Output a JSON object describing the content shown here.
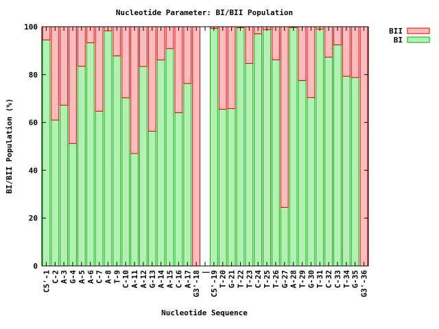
{
  "chart_data": {
    "type": "bar",
    "stacked": true,
    "title": "Nucleotide Parameter: BI/BII Population",
    "xlabel": "Nucleotide Sequence",
    "ylabel": "BI/BII Population (%)",
    "ylim": [
      0,
      100
    ],
    "yticks": [
      0,
      20,
      40,
      60,
      80,
      100
    ],
    "legend_position": "top-right outside",
    "grid": false,
    "categories": [
      "C5'-1",
      "C-2",
      "A-3",
      "G-4",
      "A-5",
      "A-6",
      "C-7",
      "A-8",
      "T-9",
      "C-10",
      "A-11",
      "A-12",
      "G-13",
      "A-14",
      "A-15",
      "C-16",
      "A-17",
      "G3'-18",
      "|",
      "C5'-19",
      "T-20",
      "G-21",
      "T-22",
      "T-23",
      "C-24",
      "T-25",
      "T-26",
      "G-27",
      "A-28",
      "T-29",
      "G-30",
      "T-31",
      "C-32",
      "C-33",
      "T-34",
      "G-35",
      "G3'-36"
    ],
    "series": [
      {
        "name": "BI",
        "fill": "#b3f0b3",
        "stroke": "#00b000",
        "values": [
          94.5,
          61.0,
          67.2,
          51.2,
          83.5,
          93.3,
          64.7,
          98.3,
          87.8,
          70.3,
          47.0,
          83.4,
          56.3,
          86.1,
          90.9,
          64.1,
          76.3,
          0,
          null,
          99.3,
          65.5,
          65.8,
          99.6,
          84.7,
          97.0,
          98.8,
          86.2,
          24.5,
          99.7,
          77.5,
          70.4,
          99.0,
          87.3,
          92.4,
          79.3,
          78.8,
          0
        ]
      },
      {
        "name": "BII",
        "fill": "#ffbcbc",
        "stroke": "#e00000",
        "values": [
          5.5,
          39.0,
          32.8,
          48.8,
          16.5,
          6.7,
          35.3,
          1.7,
          12.2,
          29.7,
          53.0,
          16.6,
          43.7,
          13.9,
          9.1,
          35.9,
          23.7,
          100,
          null,
          0.7,
          34.5,
          34.2,
          0.4,
          15.3,
          3.0,
          1.2,
          13.8,
          75.5,
          0.3,
          22.5,
          29.6,
          1.0,
          12.7,
          7.6,
          20.7,
          21.2,
          100
        ]
      }
    ]
  }
}
